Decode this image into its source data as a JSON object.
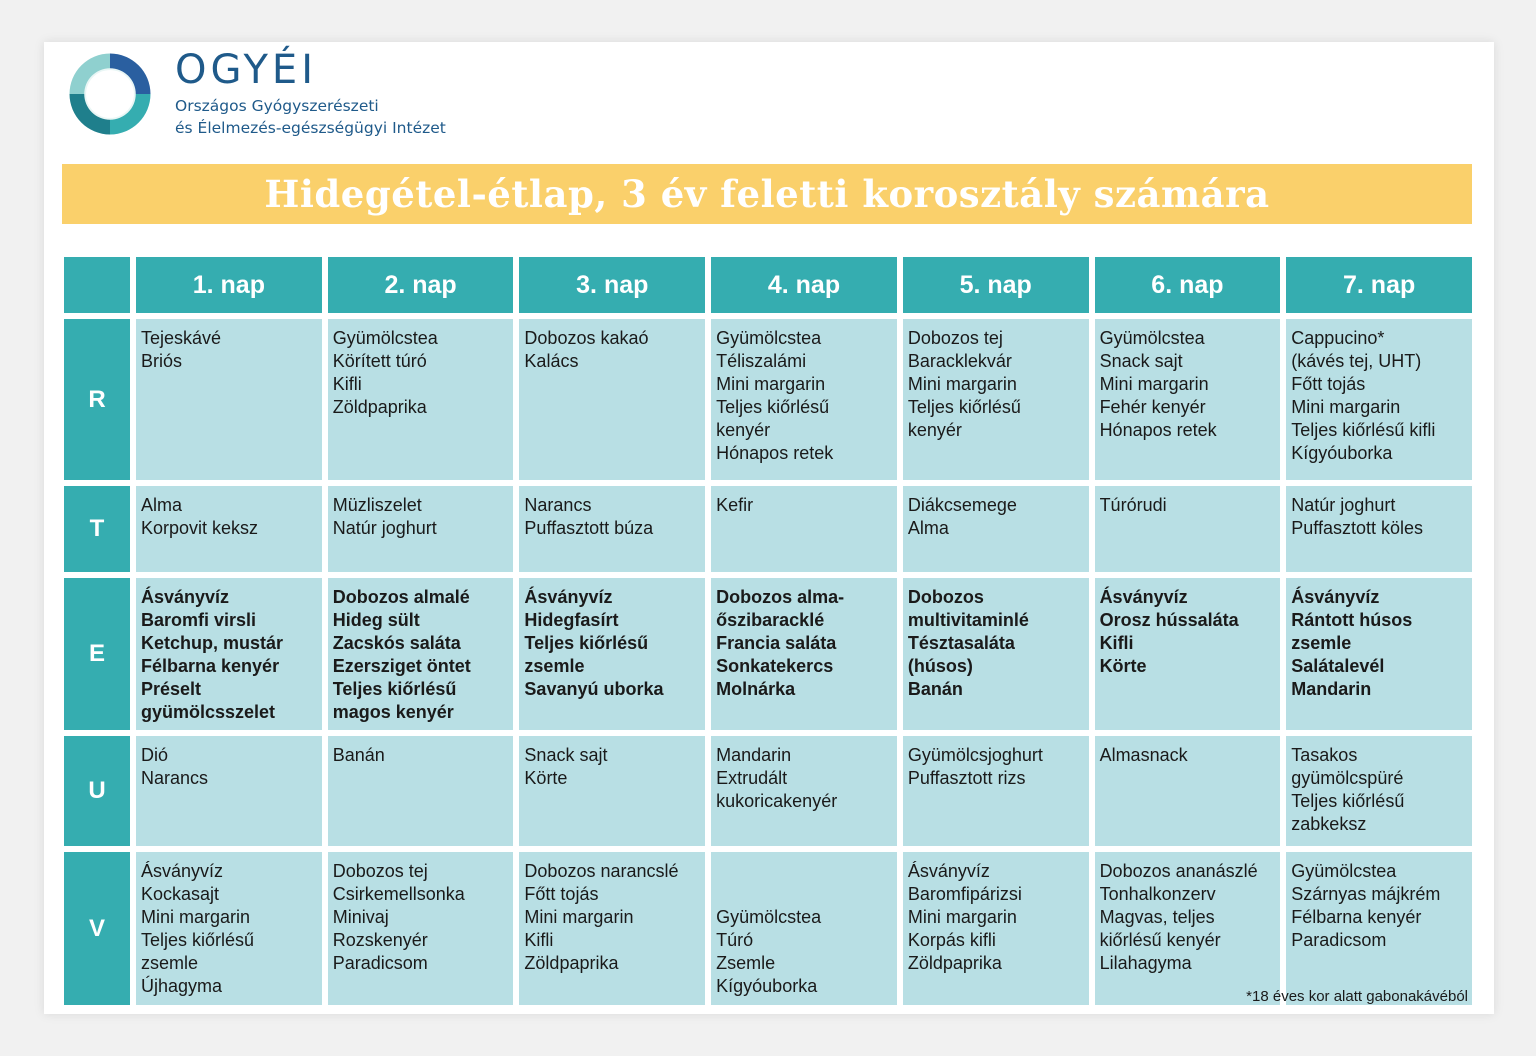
{
  "header": {
    "logo_text": "OGYÉI",
    "subtitle_line1": "Országos Gyógyszerészeti",
    "subtitle_line2": "és Élelmezés-egészségügyi Intézet"
  },
  "title": "Hidegétel-étlap, 3 év feletti korosztály számára",
  "days": [
    "1. nap",
    "2. nap",
    "3. nap",
    "4. nap",
    "5. nap",
    "6. nap",
    "7. nap"
  ],
  "meals": [
    {
      "label": "R",
      "cells": [
        [
          "Tejeskávé",
          "Briós"
        ],
        [
          "Gyümölcstea",
          "Körített túró",
          "Kifli",
          "Zöldpaprika"
        ],
        [
          "Dobozos kakaó",
          "Kalács"
        ],
        [
          "Gyümölcstea",
          "Téliszalámi",
          "Mini margarin",
          "Teljes kiőrlésű",
          "kenyér",
          "Hónapos retek"
        ],
        [
          "Dobozos tej",
          "Baracklekvár",
          "Mini margarin",
          "Teljes kiőrlésű",
          "kenyér"
        ],
        [
          "Gyümölcstea",
          "Snack sajt",
          "Mini margarin",
          "Fehér kenyér",
          "Hónapos retek"
        ],
        [
          "Cappucino*",
          "(kávés tej, UHT)",
          "Főtt tojás",
          "Mini margarin",
          "Teljes kiőrlésű kifli",
          "Kígyóuborka"
        ]
      ]
    },
    {
      "label": "T",
      "cells": [
        [
          "Alma",
          "Korpovit keksz"
        ],
        [
          "Müzliszelet",
          "Natúr joghurt"
        ],
        [
          "Narancs",
          "Puffasztott búza"
        ],
        [
          "Kefir"
        ],
        [
          "Diákcsemege",
          "Alma"
        ],
        [
          "Túrórudi"
        ],
        [
          "Natúr joghurt",
          "Puffasztott köles"
        ]
      ]
    },
    {
      "label": "E",
      "bold": true,
      "cells": [
        [
          "Ásványvíz",
          "Baromfi virsli",
          "Ketchup, mustár",
          "Félbarna kenyér",
          "Préselt",
          "gyümölcsszelet"
        ],
        [
          "Dobozos almalé",
          "Hideg sült",
          "Zacskós saláta",
          "Ezersziget öntet",
          "Teljes kiőrlésű",
          "magos kenyér"
        ],
        [
          "Ásványvíz",
          "Hidegfasírt",
          "Teljes kiőrlésű",
          "zsemle",
          "Savanyú uborka"
        ],
        [
          "Dobozos alma-",
          "őszibaracklé",
          "Francia saláta",
          "Sonkatekercs",
          "Molnárka"
        ],
        [
          "Dobozos",
          "multivitaminlé",
          "Tésztasaláta",
          "(húsos)",
          "Banán"
        ],
        [
          "Ásványvíz",
          "Orosz hússaláta",
          "Kifli",
          "Körte"
        ],
        [
          "Ásványvíz",
          "Rántott húsos",
          "zsemle",
          "Salátalevél",
          "Mandarin"
        ]
      ]
    },
    {
      "label": "U",
      "cells": [
        [
          "Dió",
          "Narancs"
        ],
        [
          "Banán"
        ],
        [
          "Snack sajt",
          "Körte"
        ],
        [
          "Mandarin",
          "Extrudált",
          "kukoricakenyér"
        ],
        [
          "Gyümölcsjoghurt",
          "Puffasztott rizs"
        ],
        [
          "Almasnack"
        ],
        [
          "Tasakos",
          "gyümölcspüré",
          "Teljes kiőrlésű",
          "zabkeksz"
        ]
      ]
    },
    {
      "label": "V",
      "cells": [
        [
          "Ásványvíz",
          "Kockasajt",
          "Mini margarin",
          "Teljes kiőrlésű",
          "zsemle",
          "Újhagyma"
        ],
        [
          "Dobozos tej",
          "Csirkemellsonka",
          "Minivaj",
          "Rozskenyér",
          "Paradicsom"
        ],
        [
          "Dobozos narancslé",
          "Főtt tojás",
          "Mini margarin",
          "Kifli",
          "Zöldpaprika"
        ],
        [
          "Gyümölcstea",
          "Túró",
          "Zsemle",
          "Kígyóuborka"
        ],
        [
          "Ásványvíz",
          "Baromfipárizsi",
          "Mini margarin",
          "Korpás kifli",
          "Zöldpaprika"
        ],
        [
          "Dobozos ananászlé",
          "Tonhalkonzerv",
          "Magvas, teljes",
          "kiőrlésű kenyér",
          "Lilahagyma"
        ],
        [
          "Gyümölcstea",
          "Szárnyas májkrém",
          "Félbarna kenyér",
          "Paradicsom"
        ]
      ]
    }
  ],
  "footnote": "*18 éves kor alatt gabonakávéból",
  "colors": {
    "header_teal": "#35adb0",
    "cell_light": "#b8dfe4",
    "title_yellow": "#fad06b",
    "brand_blue": "#1f5a8a"
  }
}
